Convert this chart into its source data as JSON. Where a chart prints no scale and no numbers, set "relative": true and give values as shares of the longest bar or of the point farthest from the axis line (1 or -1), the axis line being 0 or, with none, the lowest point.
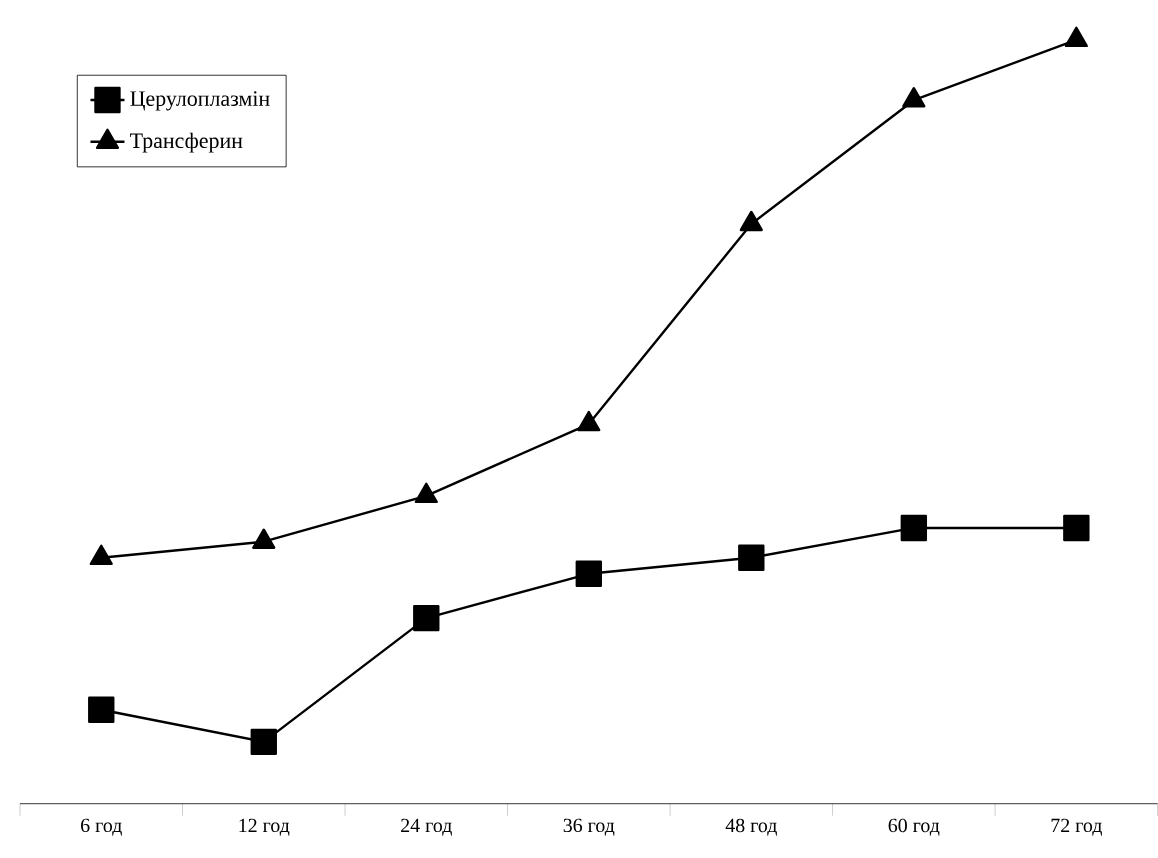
{
  "chart_data": {
    "type": "line",
    "relative": true,
    "categories": [
      "6 год",
      "12 год",
      "24 год",
      "36 год",
      "48 год",
      "60 год",
      "72 год"
    ],
    "series": [
      {
        "name": "Церулоплазмін",
        "color": "#000000",
        "marker": "square",
        "values": [
          0.123,
          0.081,
          0.243,
          0.301,
          0.322,
          0.361,
          0.361
        ]
      },
      {
        "name": "Трансферин",
        "color": "#000000",
        "marker": "triangle",
        "values": [
          0.322,
          0.343,
          0.403,
          0.497,
          0.759,
          0.921,
          1
        ]
      }
    ],
    "legend": "top left",
    "grid": false,
    "line_style": "solid"
  }
}
